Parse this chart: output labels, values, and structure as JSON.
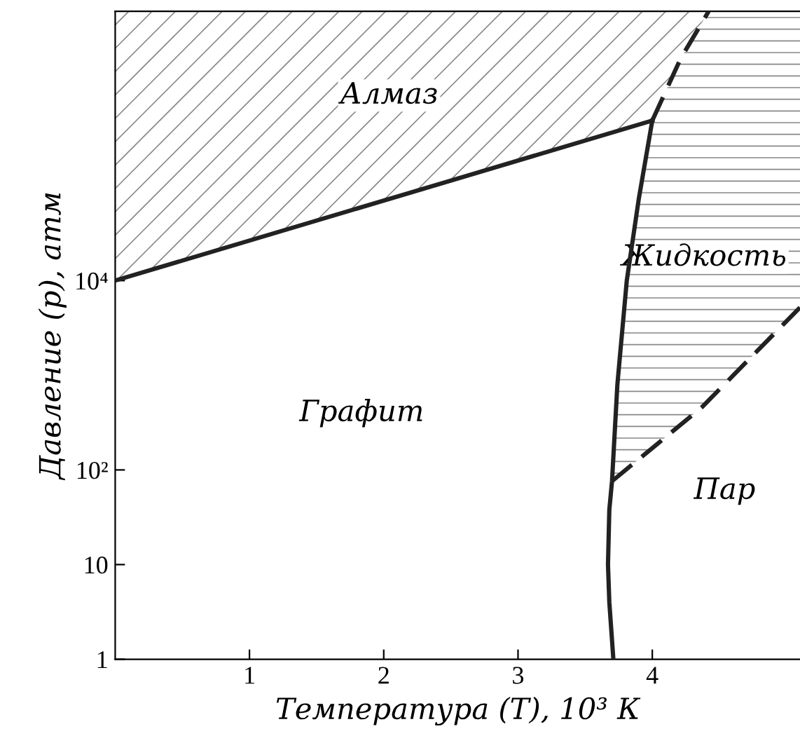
{
  "chart_data": {
    "type": "line",
    "xlabel": "Температура (T), 10³ К",
    "ylabel": "Давление (p), атм",
    "xlim": [
      0,
      5.1
    ],
    "xticks": [
      1,
      2,
      3,
      4
    ],
    "ylim": [
      1,
      7000000
    ],
    "log": true,
    "yticks": [
      1,
      10,
      {
        "value": 100,
        "label": "10²"
      },
      {
        "value": 10000,
        "label": "10⁴"
      }
    ],
    "grid": false,
    "legend": false,
    "series": [
      {
        "color": "#222222",
        "line_style": "solid",
        "x": [
          0,
          4.0
        ],
        "values": [
          10000,
          490000
        ]
      },
      {
        "color": "#222222",
        "line_style": "solid",
        "x": [
          3.71,
          3.68,
          3.67,
          3.68,
          3.7,
          3.74,
          3.81,
          3.9,
          4.0
        ],
        "values": [
          1,
          4,
          10,
          38,
          76,
          800,
          10000,
          74000,
          490000
        ]
      },
      {
        "color": "#222222",
        "line_style": "dashed",
        "x": [
          4.0,
          4.21,
          4.42
        ],
        "values": [
          490000,
          2200000,
          7000000
        ]
      },
      {
        "color": "#222222",
        "line_style": "dashed",
        "x": [
          3.7,
          4.37,
          5.1
        ],
        "values": [
          76,
          460,
          5200
        ]
      }
    ],
    "annotations": [
      "Алмаз",
      "Графит",
      "Жидкость",
      "Пар"
    ]
  }
}
